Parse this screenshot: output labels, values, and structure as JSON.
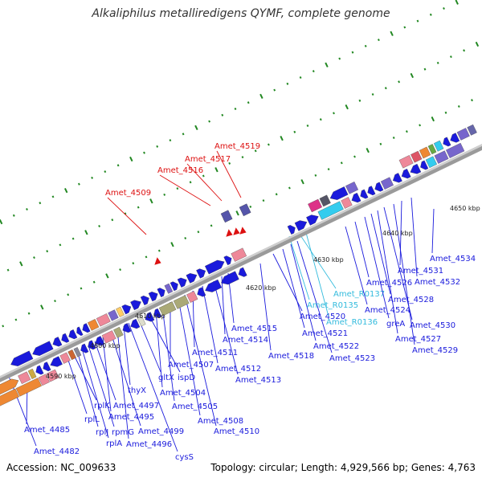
{
  "header": {
    "title": "Alkaliphilus metalliredigens QYMF, complete genome"
  },
  "footer": {
    "accession": "Accession: NC_009633",
    "summary": "Topology: circular; Length: 4,929,566 bp; Genes: 4,763"
  },
  "colors": {
    "cds": "#1a1adc",
    "rna": "#33bbdd",
    "pseudo": "#dd1111",
    "tick": "#228822",
    "backbone": "#888888"
  },
  "kbp_ticks": [
    {
      "kbp": 4590,
      "label": "4590 kbp"
    },
    {
      "kbp": 4600,
      "label": "4600 kbp"
    },
    {
      "kbp": 4610,
      "label": "4610 kbp"
    },
    {
      "kbp": 4620,
      "label": "4620 kbp"
    },
    {
      "kbp": 4630,
      "label": "4630 kbp"
    },
    {
      "kbp": 4640,
      "label": "4640 kbp"
    },
    {
      "kbp": 4650,
      "label": "4650 kbp"
    }
  ],
  "gene_labels": [
    {
      "text": "Amet_4485",
      "kind": "cds"
    },
    {
      "text": "Amet_4482",
      "kind": "cds"
    },
    {
      "text": "rplK",
      "kind": "cds"
    },
    {
      "text": "rplL",
      "kind": "cds"
    },
    {
      "text": "rplJ",
      "kind": "cds"
    },
    {
      "text": "rplA",
      "kind": "cds"
    },
    {
      "text": "rpmG",
      "kind": "cds"
    },
    {
      "text": "Amet_4497",
      "kind": "cds"
    },
    {
      "text": "Amet_4495",
      "kind": "cds"
    },
    {
      "text": "Amet_4499",
      "kind": "cds"
    },
    {
      "text": "Amet_4496",
      "kind": "cds"
    },
    {
      "text": "thyX",
      "kind": "cds"
    },
    {
      "text": "cysS",
      "kind": "cds"
    },
    {
      "text": "gltX",
      "kind": "cds"
    },
    {
      "text": "ispD",
      "kind": "cds"
    },
    {
      "text": "Amet_4504",
      "kind": "cds"
    },
    {
      "text": "Amet_4505",
      "kind": "cds"
    },
    {
      "text": "Amet_4507",
      "kind": "cds"
    },
    {
      "text": "Amet_4508",
      "kind": "cds"
    },
    {
      "text": "Amet_4510",
      "kind": "cds"
    },
    {
      "text": "Amet_4511",
      "kind": "cds"
    },
    {
      "text": "Amet_4512",
      "kind": "cds"
    },
    {
      "text": "Amet_4513",
      "kind": "cds"
    },
    {
      "text": "Amet_4514",
      "kind": "cds"
    },
    {
      "text": "Amet_4515",
      "kind": "cds"
    },
    {
      "text": "Amet_4518",
      "kind": "cds"
    },
    {
      "text": "Amet_4520",
      "kind": "cds"
    },
    {
      "text": "Amet_4521",
      "kind": "cds"
    },
    {
      "text": "Amet_4522",
      "kind": "cds"
    },
    {
      "text": "Amet_4523",
      "kind": "cds"
    },
    {
      "text": "Amet_R0137",
      "kind": "rna"
    },
    {
      "text": "Amet_R0135",
      "kind": "rna"
    },
    {
      "text": "Amet_R0136",
      "kind": "rna"
    },
    {
      "text": "Amet_4524",
      "kind": "cds"
    },
    {
      "text": "Amet_4526",
      "kind": "cds"
    },
    {
      "text": "greA",
      "kind": "cds"
    },
    {
      "text": "Amet_4528",
      "kind": "cds"
    },
    {
      "text": "Amet_4527",
      "kind": "cds"
    },
    {
      "text": "Amet_4530",
      "kind": "cds"
    },
    {
      "text": "Amet_4529",
      "kind": "cds"
    },
    {
      "text": "Amet_4531",
      "kind": "cds"
    },
    {
      "text": "Amet_4532",
      "kind": "cds"
    },
    {
      "text": "Amet_4534",
      "kind": "cds"
    },
    {
      "text": "Amet_4509",
      "kind": "pseudo"
    },
    {
      "text": "Amet_4516",
      "kind": "pseudo"
    },
    {
      "text": "Amet_4517",
      "kind": "pseudo"
    },
    {
      "text": "Amet_4519",
      "kind": "pseudo"
    }
  ]
}
